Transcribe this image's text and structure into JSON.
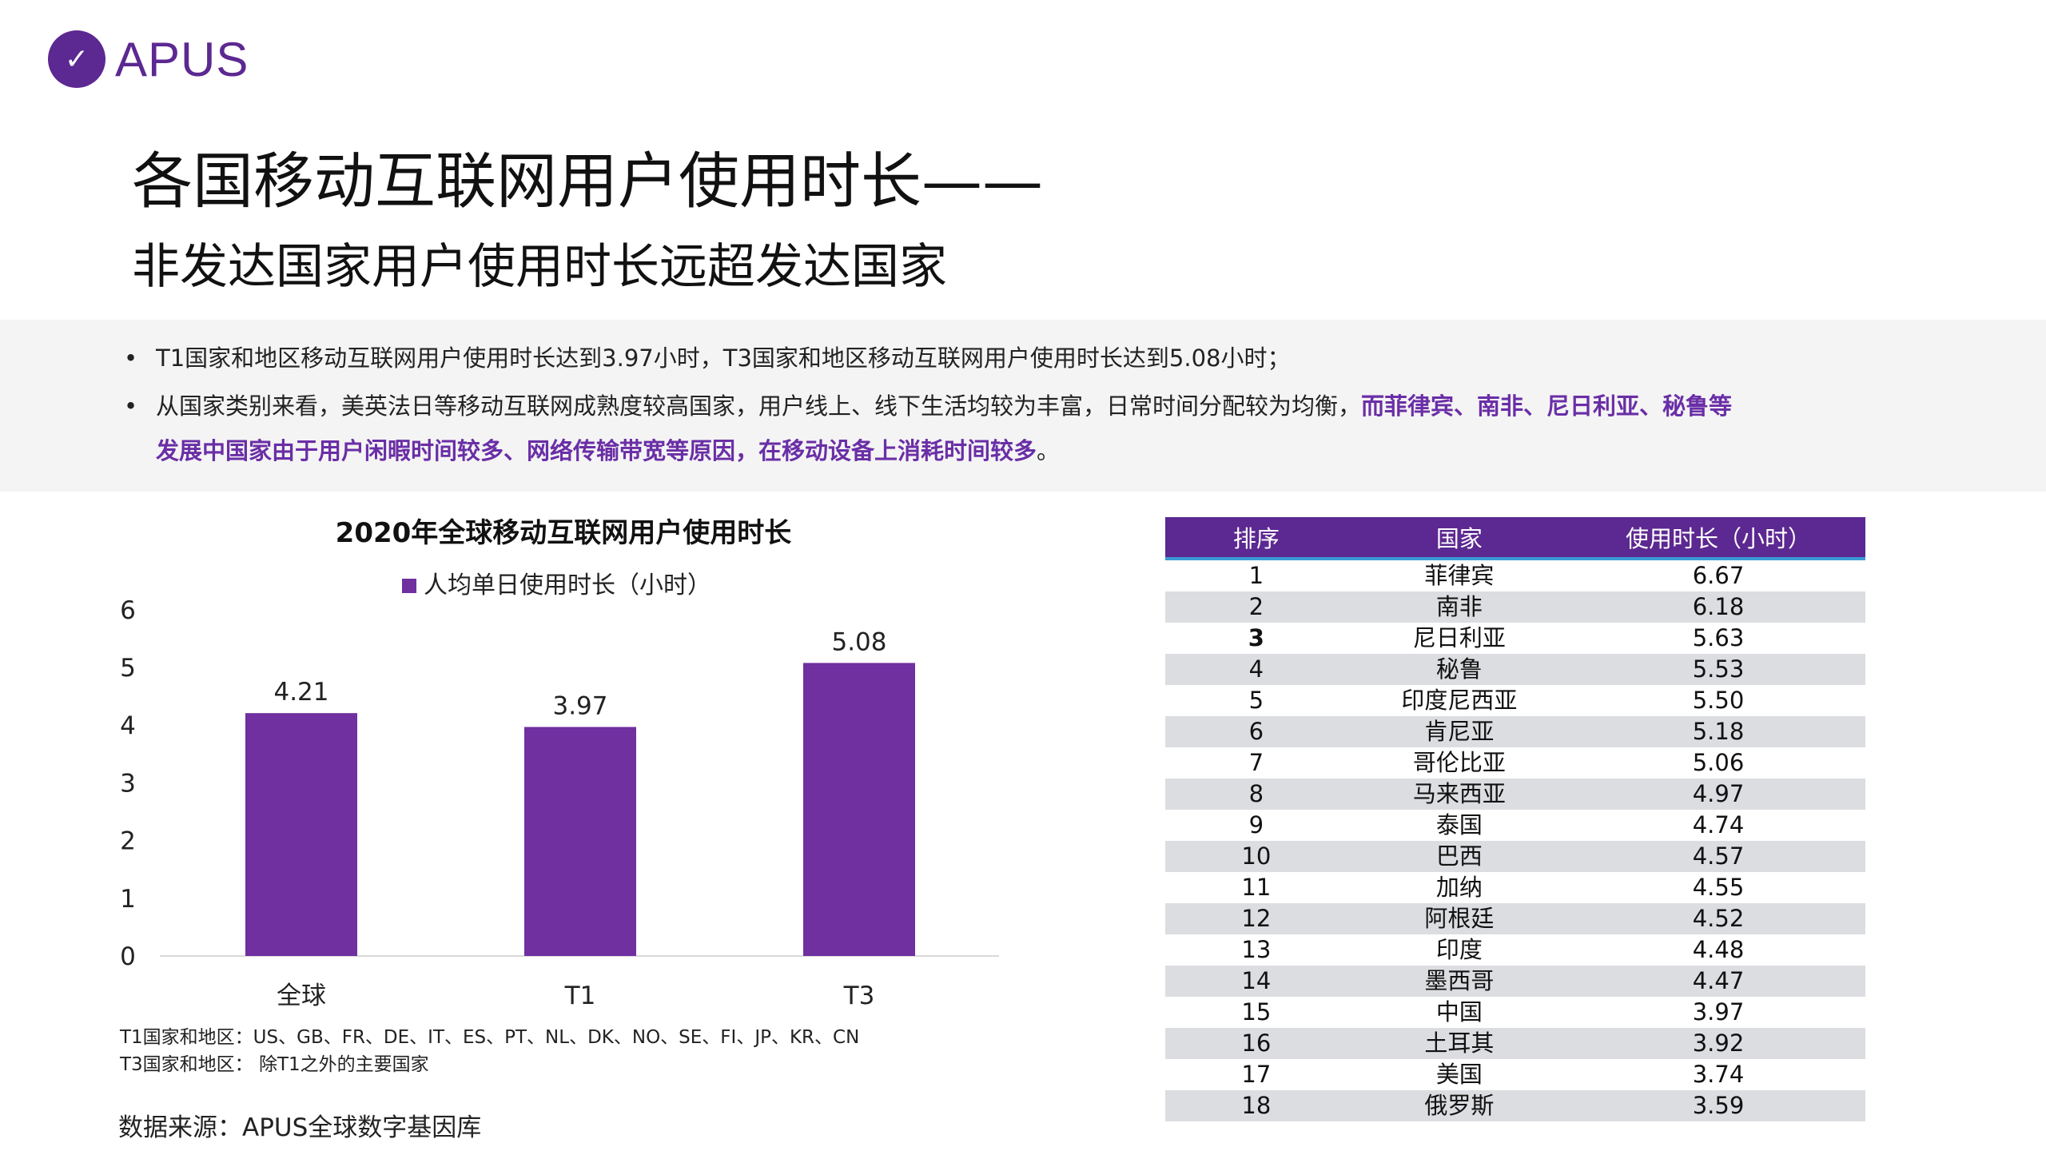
{
  "brand": {
    "name": "APUS",
    "color": "#5c2891",
    "icon": "apus-swift-logo-icon"
  },
  "header": {
    "title": "各国移动互联网用户使用时长——",
    "subtitle": "非发达国家用户使用时长远超发达国家"
  },
  "bullets": [
    {
      "text": "T1国家和地区移动互联网用户使用时长达到3.97小时，T3国家和地区移动互联网用户使用时长达到5.08小时；",
      "highlight": ""
    },
    {
      "text": "从国家类别来看，美英法日等移动互联网成熟度较高国家，用户线上、线下生活均较为丰富，日常时间分配较为均衡，",
      "highlight": "而菲律宾、南非、尼日利亚、秘鲁等",
      "highlight2": "发展中国家由于用户闲暇时间较多、网络传输带宽等原因，在移动设备上消耗时间较多",
      "tail": "。"
    }
  ],
  "chart_data": {
    "type": "bar",
    "title": "2020年全球移动互联网用户使用时长",
    "categories": [
      "全球",
      "T1",
      "T3"
    ],
    "series": [
      {
        "name": "人均单日使用时长（小时）",
        "values": [
          4.21,
          3.97,
          5.08
        ],
        "color": "#7030a0"
      }
    ],
    "yticks": [
      "0",
      "1",
      "2",
      "3",
      "4",
      "5",
      "6"
    ],
    "ylim": [
      0,
      6
    ],
    "grid": false,
    "legend": "top"
  },
  "notes": [
    "T1国家和地区：US、GB、FR、DE、IT、ES、PT、NL、DK、NO、SE、FI、JP、KR、CN",
    "T3国家和地区： 除T1之外的主要国家"
  ],
  "source": "数据来源：APUS全球数字基因库",
  "table": {
    "headers": [
      "排序",
      "国家",
      "使用时长（小时）"
    ],
    "rows": [
      [
        "1",
        "菲律宾",
        "6.67"
      ],
      [
        "2",
        "南非",
        "6.18"
      ],
      [
        "3",
        "尼日利亚",
        "5.63"
      ],
      [
        "4",
        "秘鲁",
        "5.53"
      ],
      [
        "5",
        "印度尼西亚",
        "5.50"
      ],
      [
        "6",
        "肯尼亚",
        "5.18"
      ],
      [
        "7",
        "哥伦比亚",
        "5.06"
      ],
      [
        "8",
        "马来西亚",
        "4.97"
      ],
      [
        "9",
        "泰国",
        "4.74"
      ],
      [
        "10",
        "巴西",
        "4.57"
      ],
      [
        "11",
        "加纳",
        "4.55"
      ],
      [
        "12",
        "阿根廷",
        "4.52"
      ],
      [
        "13",
        "印度",
        "4.48"
      ],
      [
        "14",
        "墨西哥",
        "4.47"
      ],
      [
        "15",
        "中国",
        "3.97"
      ],
      [
        "16",
        "土耳其",
        "3.92"
      ],
      [
        "17",
        "美国",
        "3.74"
      ],
      [
        "18",
        "俄罗斯",
        "3.59"
      ]
    ]
  }
}
